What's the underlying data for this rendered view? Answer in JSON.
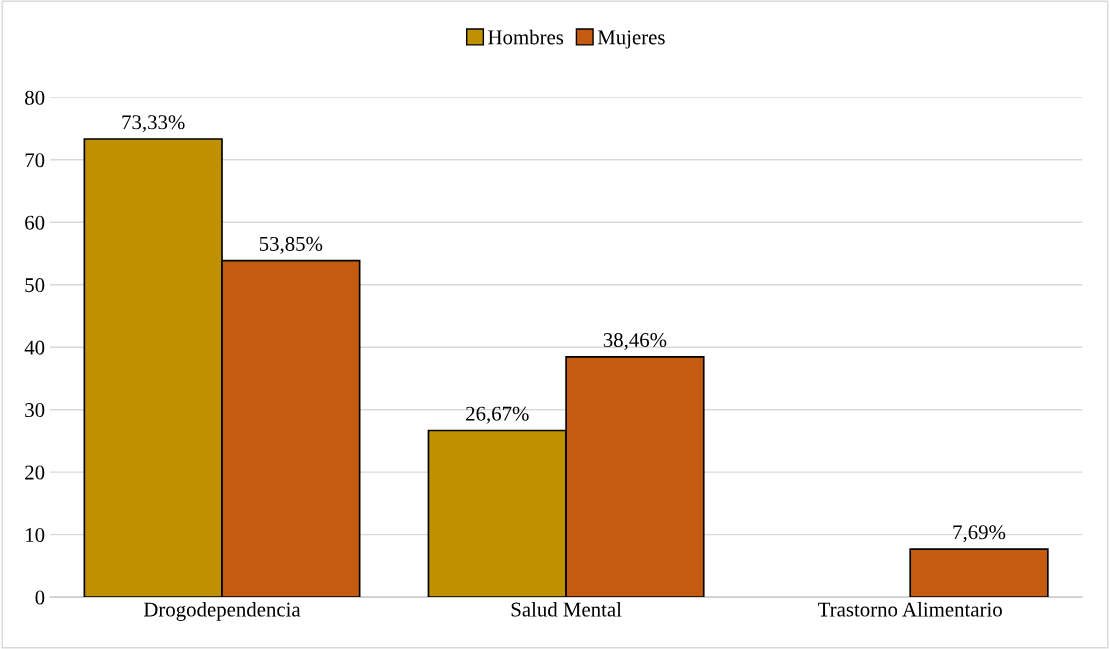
{
  "chart_data": {
    "type": "bar",
    "categories": [
      "Drogodependencia",
      "Salud Mental",
      "Trastorno Alimentario"
    ],
    "series": [
      {
        "name": "Hombres",
        "color": "#bf9000",
        "values": [
          73.33,
          26.67,
          null
        ],
        "value_labels": [
          "73,33%",
          "26,67%",
          null
        ]
      },
      {
        "name": "Mujeres",
        "color": "#c55a11",
        "values": [
          53.85,
          38.46,
          7.69
        ],
        "value_labels": [
          "53,85%",
          "38,46%",
          "7,69%"
        ]
      }
    ],
    "ylim": [
      0,
      80
    ],
    "yticks": [
      0,
      10,
      20,
      30,
      40,
      50,
      60,
      70,
      80
    ],
    "grid": "y",
    "legend": "top"
  }
}
